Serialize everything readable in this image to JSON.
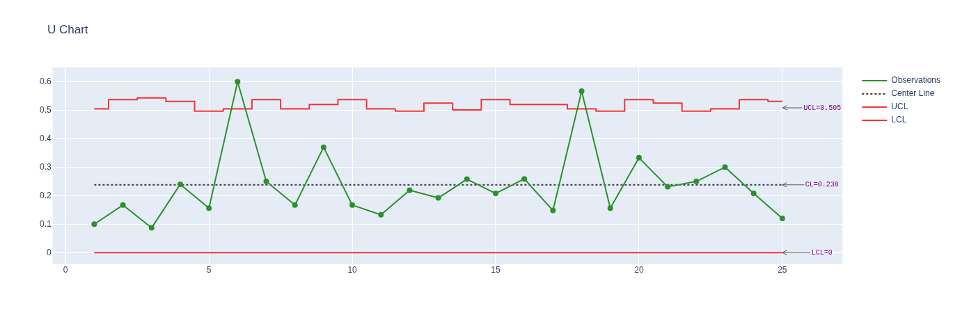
{
  "chart_data": {
    "type": "line",
    "title": "U Chart",
    "x": [
      1,
      2,
      3,
      4,
      5,
      6,
      7,
      8,
      9,
      10,
      11,
      12,
      13,
      14,
      15,
      16,
      17,
      18,
      19,
      20,
      21,
      22,
      23,
      24,
      25
    ],
    "xlim": [
      -0.45,
      27.1
    ],
    "xticks": [
      0,
      5,
      10,
      15,
      20,
      25
    ],
    "ylim": [
      -0.04,
      0.65
    ],
    "yticks": [
      0,
      0.1,
      0.2,
      0.3,
      0.4,
      0.5,
      0.6
    ],
    "grid": true,
    "legend": "top right",
    "series": [
      {
        "name": "Observations",
        "color": "#2b912b",
        "marker": "circle",
        "values": [
          0.1,
          0.167,
          0.087,
          0.24,
          0.156,
          0.6,
          0.25,
          0.167,
          0.37,
          0.167,
          0.133,
          0.219,
          0.192,
          0.258,
          0.208,
          0.259,
          0.148,
          0.567,
          0.156,
          0.333,
          0.231,
          0.25,
          0.3,
          0.208,
          0.12
        ]
      },
      {
        "name": "Center Line",
        "color": "#3a3a3a",
        "line_style": "dotted",
        "values": [
          0.238,
          0.238,
          0.238,
          0.238,
          0.238,
          0.238,
          0.238,
          0.238,
          0.238,
          0.238,
          0.238,
          0.238,
          0.238,
          0.238,
          0.238,
          0.238,
          0.238,
          0.238,
          0.238,
          0.238,
          0.238,
          0.238,
          0.238,
          0.238,
          0.238
        ]
      },
      {
        "name": "UCL",
        "type": "step",
        "color": "#f53333",
        "values": [
          0.505,
          0.537,
          0.543,
          0.531,
          0.497,
          0.505,
          0.537,
          0.505,
          0.52,
          0.537,
          0.505,
          0.497,
          0.525,
          0.501,
          0.537,
          0.52,
          0.52,
          0.505,
          0.497,
          0.537,
          0.525,
          0.497,
          0.505,
          0.537,
          0.531
        ]
      },
      {
        "name": "LCL",
        "type": "step",
        "color": "#f53333",
        "values": [
          0,
          0,
          0,
          0,
          0,
          0,
          0,
          0,
          0,
          0,
          0,
          0,
          0,
          0,
          0,
          0,
          0,
          0,
          0,
          0,
          0,
          0,
          0,
          0,
          0
        ]
      }
    ],
    "annotations": [
      "UCL=0.505",
      {
        "text": "CL=0.238",
        "x": 25,
        "y": 0.238
      },
      {
        "text": "LCL=0",
        "x": 25,
        "y": 0
      }
    ]
  }
}
